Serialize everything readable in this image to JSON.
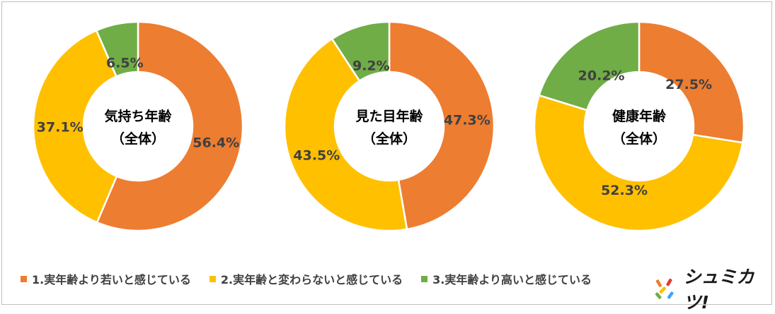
{
  "colors": {
    "orange": "#ED7D31",
    "yellow": "#FFC000",
    "green": "#70AD47"
  },
  "legend": [
    {
      "label": "1.実年齢より若いと感じている",
      "color": "#ED7D31"
    },
    {
      "label": "2.実年齢と変わらないと感じている",
      "color": "#FFC000"
    },
    {
      "label": "3.実年齢より高いと感じている",
      "color": "#70AD47"
    }
  ],
  "brand": {
    "text": "シュミカツ!"
  },
  "chart_data": [
    {
      "type": "pie",
      "variant": "donut",
      "center_label": [
        "気持ち年齢",
        "（全体）"
      ],
      "categories": [
        "1.実年齢より若いと感じている",
        "2.実年齢と変わらないと感じている",
        "3.実年齢より高いと感じている"
      ],
      "values": [
        56.4,
        37.1,
        6.5
      ],
      "value_labels": [
        "56.4%",
        "37.1%",
        "6.5%"
      ],
      "colors": [
        "#ED7D31",
        "#FFC000",
        "#70AD47"
      ]
    },
    {
      "type": "pie",
      "variant": "donut",
      "center_label": [
        "見た目年齢",
        "（全体）"
      ],
      "categories": [
        "1.実年齢より若いと感じている",
        "2.実年齢と変わらないと感じている",
        "3.実年齢より高いと感じている"
      ],
      "values": [
        47.3,
        43.5,
        9.2
      ],
      "value_labels": [
        "47.3%",
        "43.5%",
        "9.2%"
      ],
      "colors": [
        "#ED7D31",
        "#FFC000",
        "#70AD47"
      ]
    },
    {
      "type": "pie",
      "variant": "donut",
      "center_label": [
        "健康年齢",
        "（全体）"
      ],
      "categories": [
        "1.実年齢より若いと感じている",
        "2.実年齢と変わらないと感じている",
        "3.実年齢より高いと感じている"
      ],
      "values": [
        27.5,
        52.3,
        20.2
      ],
      "value_labels": [
        "27.5%",
        "52.3%",
        "20.2%"
      ],
      "colors": [
        "#ED7D31",
        "#FFC000",
        "#70AD47"
      ]
    }
  ]
}
